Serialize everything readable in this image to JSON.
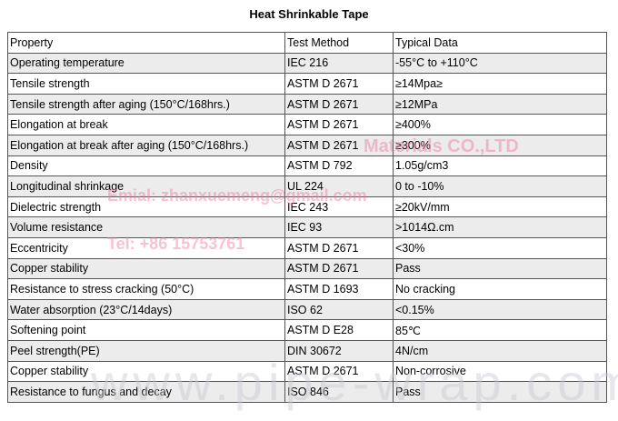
{
  "title": "Heat Shrinkable Tape",
  "table": {
    "header": [
      "Property",
      "Test Method",
      "Typical Data"
    ],
    "rows": [
      [
        "Operating temperature",
        "IEC 216",
        "-55°C to +110°C"
      ],
      [
        "Tensile strength",
        "ASTM D 2671",
        "≥14Mpa≥"
      ],
      [
        "Tensile strength after aging (150°C/168hrs.)",
        "ASTM D 2671",
        "≥12MPa"
      ],
      [
        "Elongation at break",
        "ASTM D 2671",
        "≥400%"
      ],
      [
        "Elongation at break after aging (150°C/168hrs.)",
        "ASTM D 2671",
        "≥300%"
      ],
      [
        "Density",
        "ASTM D 792",
        "1.05g/cm3"
      ],
      [
        "Longitudinal shrinkage",
        "UL 224",
        "0 to -10%"
      ],
      [
        "Dielectric strength",
        "IEC 243",
        "≥20kV/mm"
      ],
      [
        "Volume resistance",
        "IEC 93",
        ">1014Ω.cm"
      ],
      [
        "Eccentricity",
        "ASTM D 2671",
        "<30%"
      ],
      [
        "Copper stability",
        "ASTM D 2671",
        "Pass"
      ],
      [
        "Resistance to stress cracking (50°C)",
        "ASTM D 1693",
        "No cracking"
      ],
      [
        "Water absorption (23°C/14days)",
        "ISO 62",
        "<0.15%"
      ],
      [
        "Softening point",
        "ASTM D E28",
        " 85℃"
      ],
      [
        "Peel strength(PE)",
        "DIN 30672",
        "4N/cm"
      ],
      [
        "Copper stability",
        "ASTM D 2671",
        "Non-corrosive"
      ],
      [
        "Resistance to fungus and decay",
        "ISO 846",
        "Pass"
      ]
    ]
  },
  "watermarks": [
    "Materials CO.,LTD",
    "Emial: zhanxuemeng@gmail.com",
    "Tel: +86 15753761",
    "www.pipe-wrap.com"
  ]
}
